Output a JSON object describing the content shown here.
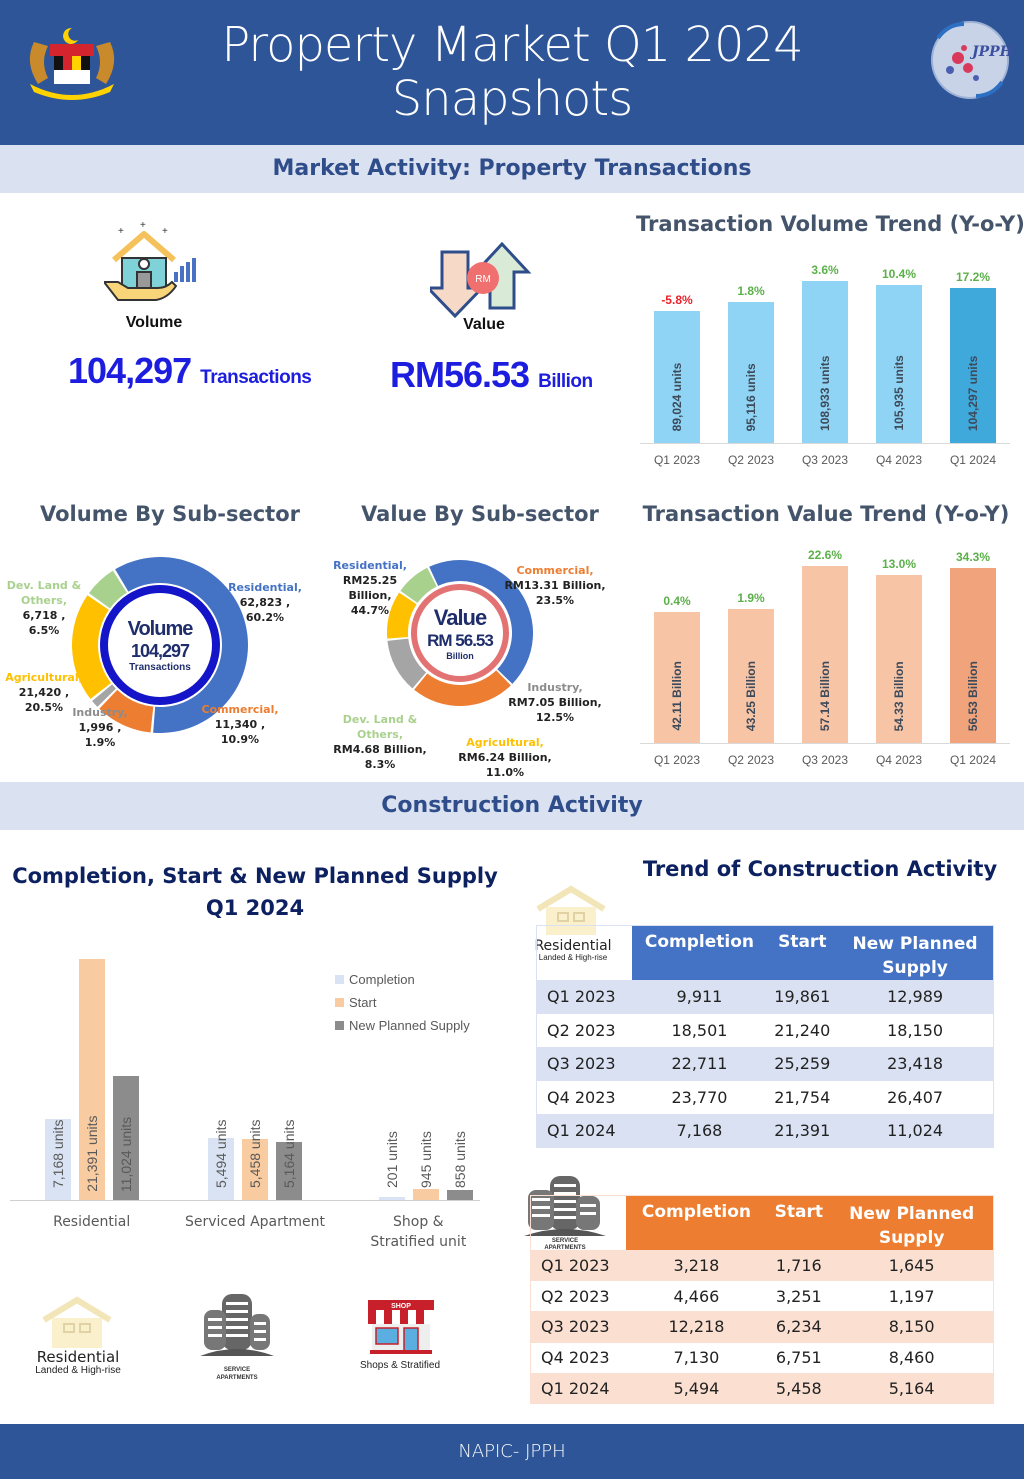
{
  "header": {
    "title_line1": "Property Market Q1 2024",
    "title_line2": "Snapshots",
    "left_logo": "malaysia-coat-of-arms",
    "right_logo": "jpph-globe-logo",
    "right_logo_text": "JPPH"
  },
  "market_activity": {
    "band_title": "Market Activity: Property Transactions",
    "volume": {
      "label": "Volume",
      "value": "104,297",
      "unit": "Transactions",
      "icon": "house-in-hand-icon"
    },
    "value": {
      "label": "Value",
      "value": "RM56.53",
      "unit": "Billion",
      "icon": "rm-arrows-icon",
      "icon_text": "RM"
    }
  },
  "construction_activity": {
    "band_title": "Construction Activity"
  },
  "icons": {
    "residential": {
      "line1": "Residential",
      "line2": "Landed & High-rise"
    },
    "service": {
      "line1": "SERVICE",
      "line2": "APARTMENTS"
    },
    "shop": {
      "sign": "SHOP",
      "label": "Shops & Stratified"
    }
  },
  "tables": {
    "residential": {
      "headers": [
        "Completion",
        "Start",
        "New Planned",
        "Supply"
      ],
      "rows": [
        [
          "Q1 2023",
          "9,911",
          "19,861",
          "12,989"
        ],
        [
          "Q2 2023",
          "18,501",
          "21,240",
          "18,150"
        ],
        [
          "Q3 2023",
          "22,711",
          "25,259",
          "23,418"
        ],
        [
          "Q4 2023",
          "23,770",
          "21,754",
          "26,407"
        ],
        [
          "Q1 2024",
          "7,168",
          "21,391",
          "11,024"
        ]
      ],
      "header_color": "#4472c4",
      "stripe_color": "#d9e1f2"
    },
    "service_apartments": {
      "headers": [
        "Completion",
        "Start",
        "New Planned",
        "Supply"
      ],
      "rows": [
        [
          "Q1 2023",
          "3,218",
          "1,716",
          "1,645"
        ],
        [
          "Q2 2023",
          "4,466",
          "3,251",
          "1,197"
        ],
        [
          "Q3 2023",
          "12,218",
          "6,234",
          "8,150"
        ],
        [
          "Q4 2023",
          "7,130",
          "6,751",
          "8,460"
        ],
        [
          "Q1 2024",
          "5,494",
          "5,458",
          "5,164"
        ]
      ],
      "header_color": "#ed7d31",
      "stripe_color": "#fbe0d2"
    }
  },
  "footer": {
    "text": "NAPIC- JPPH"
  },
  "chart_data": [
    {
      "id": "volume-trend",
      "type": "bar",
      "title": "Transaction Volume Trend (Y-o-Y)",
      "categories": [
        "Q1 2023",
        "Q2 2023",
        "Q3 2023",
        "Q4 2023",
        "Q1 2024"
      ],
      "values": [
        89024,
        95116,
        108933,
        105935,
        104297
      ],
      "value_labels": [
        "89,024 units",
        "95,116 units",
        "108,933 units",
        "105,935 units",
        "104,297 units"
      ],
      "yoy_labels": [
        "-5.8%",
        "1.8%",
        "3.6%",
        "10.4%",
        "17.2%"
      ],
      "yoy_colors": [
        "#e8212a",
        "#5bb04a",
        "#5bb04a",
        "#5bb04a",
        "#5bb04a"
      ],
      "bar_color": "#8fd4f4",
      "highlight_color": "#3fa9dc",
      "ylim": [
        0,
        115000
      ]
    },
    {
      "id": "volume-donut",
      "type": "pie",
      "title": "Volume By Sub-sector",
      "center": {
        "line1": "Volume",
        "line2": "104,297",
        "line3": "Transactions"
      },
      "slices": [
        {
          "name": "Residential",
          "value": 62823,
          "pct": "60.2%",
          "label_value": "62,823 ,",
          "color": "#4472c4"
        },
        {
          "name": "Commercial",
          "value": 11340,
          "pct": "10.9%",
          "label_value": "11,340 ,",
          "color": "#ed7d31"
        },
        {
          "name": "Industry",
          "value": 1996,
          "pct": "1.9%",
          "label_value": "1,996 ,",
          "color": "#a5a5a5"
        },
        {
          "name": "Agricultural",
          "value": 21420,
          "pct": "20.5%",
          "label_value": "21,420 ,",
          "color": "#ffc000"
        },
        {
          "name": "Dev. Land & Others",
          "value": 6718,
          "pct": "6.5%",
          "label_value": "6,718 ,",
          "color": "#a9d18e"
        }
      ]
    },
    {
      "id": "value-donut",
      "type": "pie",
      "title": "Value By Sub-sector",
      "center": {
        "line1": "Value",
        "line2": "RM 56.53",
        "line3": "Billion"
      },
      "slices": [
        {
          "name": "Residential",
          "value": 25.25,
          "pct": "44.7%",
          "label_value": "RM25.25 Billion,",
          "color": "#4472c4"
        },
        {
          "name": "Commercial",
          "value": 13.31,
          "pct": "23.5%",
          "label_value": "RM13.31 Billion,",
          "color": "#ed7d31"
        },
        {
          "name": "Industry",
          "value": 7.05,
          "pct": "12.5%",
          "label_value": "RM7.05 Billion,",
          "color": "#a5a5a5"
        },
        {
          "name": "Agricultural",
          "value": 6.24,
          "pct": "11.0%",
          "label_value": "RM6.24 Billion,",
          "color": "#ffc000"
        },
        {
          "name": "Dev. Land & Others",
          "value": 4.68,
          "pct": "8.3%",
          "label_value": "RM4.68 Billion,",
          "color": "#a9d18e"
        }
      ]
    },
    {
      "id": "value-trend",
      "type": "bar",
      "title": "Transaction Value Trend (Y-o-Y)",
      "categories": [
        "Q1 2023",
        "Q2 2023",
        "Q3 2023",
        "Q4 2023",
        "Q1 2024"
      ],
      "values": [
        42.11,
        43.25,
        57.14,
        54.33,
        56.53
      ],
      "value_labels": [
        "42.11 Billion",
        "43.25 Billion",
        "57.14 Billion",
        "54.33 Billion",
        "56.53 Billion"
      ],
      "yoy_labels": [
        "0.4%",
        "1.9%",
        "22.6%",
        "13.0%",
        "34.3%"
      ],
      "yoy_colors": [
        "#5bb04a",
        "#5bb04a",
        "#5bb04a",
        "#5bb04a",
        "#5bb04a"
      ],
      "bar_color": "#f8c4a6",
      "highlight_color": "#f1a37b",
      "ylim": [
        0,
        60
      ]
    },
    {
      "id": "construction-q1-2024",
      "type": "bar",
      "title": "Completion, Start & New Planned Supply",
      "subtitle": "Q1 2024",
      "categories": [
        "Residential",
        "Serviced Apartment",
        "Shop & Stratified unit"
      ],
      "categories_line2": [
        "",
        "",
        "Stratified unit"
      ],
      "category_line1": [
        "Residential",
        "Serviced Apartment",
        "Shop &"
      ],
      "series": [
        {
          "name": "Completion",
          "values": [
            7168,
            5494,
            201
          ],
          "labels": [
            "7,168  units",
            "5,494  units",
            "201  units"
          ],
          "color": "#dae3f3"
        },
        {
          "name": "Start",
          "values": [
            21391,
            5458,
            945
          ],
          "labels": [
            "21,391  units",
            "5,458  units",
            "945  units"
          ],
          "color": "#f8cba0"
        },
        {
          "name": "New Planned Supply",
          "values": [
            11024,
            5164,
            858
          ],
          "labels": [
            "11,024  units",
            "5,164  units",
            "858  units"
          ],
          "color": "#8c8c8c"
        }
      ],
      "legend_position": "top-right",
      "ylim": [
        0,
        21500
      ]
    }
  ]
}
